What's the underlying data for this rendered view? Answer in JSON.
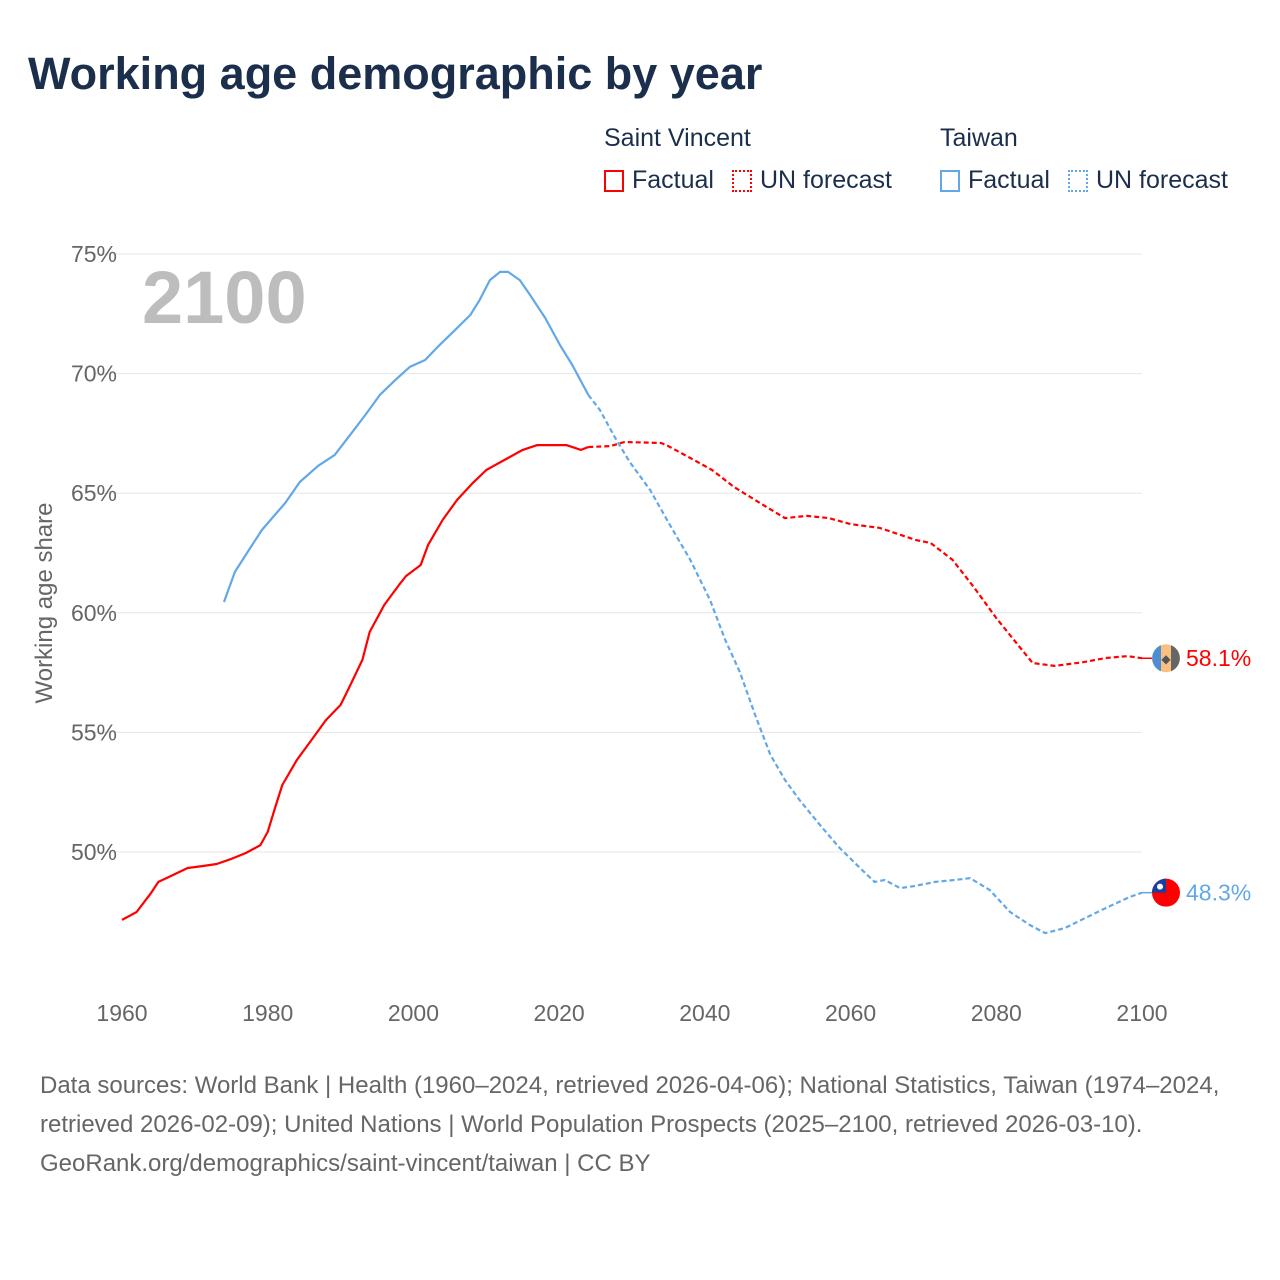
{
  "title": "Working age demographic by year",
  "legend": {
    "groups": [
      {
        "name": "Saint Vincent",
        "factual": "Factual",
        "forecast": "UN forecast",
        "color": "#ff0000"
      },
      {
        "name": "Taiwan",
        "factual": "Factual",
        "forecast": "UN forecast",
        "color": "#62a8e8"
      }
    ]
  },
  "footer": {
    "sources": "Data sources: World Bank | Health (1960–2024, retrieved 2026-04-06); National Statistics, Taiwan (1974–2024, retrieved 2026-02-09); United Nations | World Population Prospects (2025–2100, retrieved 2026-03-10).",
    "credit": "GeoRank.org/demographics/saint-vincent/taiwan | CC BY"
  },
  "chart_data": {
    "type": "line",
    "title": "Working age demographic by year",
    "xlabel": "",
    "ylabel": "Working age share",
    "year_watermark": "2100",
    "xlim": [
      1960,
      2100
    ],
    "ylim": [
      45,
      75
    ],
    "x_ticks": [
      "1960",
      "1980",
      "2000",
      "2020",
      "2040",
      "2060",
      "2080",
      "2100"
    ],
    "y_ticks": [
      "50%",
      "55%",
      "60%",
      "65%",
      "70%",
      "75%"
    ],
    "grid": true,
    "legend_position": "top-right",
    "series": [
      {
        "name": "Saint Vincent",
        "color": "#ff0000",
        "end_label": "58.1%",
        "flag": "saint-vincent-flag",
        "factual": [
          [
            1960,
            47.16
          ],
          [
            1962,
            47.49
          ],
          [
            1964,
            48.29
          ],
          [
            1965,
            48.75
          ],
          [
            1967,
            49.04
          ],
          [
            1969,
            49.33
          ],
          [
            1971,
            49.41
          ],
          [
            1973,
            49.5
          ],
          [
            1975,
            49.71
          ],
          [
            1977,
            49.96
          ],
          [
            1979,
            50.29
          ],
          [
            1980,
            50.84
          ],
          [
            1981,
            51.84
          ],
          [
            1982,
            52.8
          ],
          [
            1984,
            53.85
          ],
          [
            1986,
            54.68
          ],
          [
            1988,
            55.52
          ],
          [
            1990,
            56.15
          ],
          [
            1991,
            56.77
          ],
          [
            1993,
            58.03
          ],
          [
            1994,
            59.2
          ],
          [
            1996,
            60.33
          ],
          [
            1998,
            61.16
          ],
          [
            1999,
            61.54
          ],
          [
            2001,
            62.0
          ],
          [
            2002,
            62.83
          ],
          [
            2004,
            63.88
          ],
          [
            2006,
            64.72
          ],
          [
            2008,
            65.38
          ],
          [
            2010,
            65.97
          ],
          [
            2011,
            66.14
          ],
          [
            2015,
            66.81
          ],
          [
            2017,
            67.01
          ],
          [
            2021,
            67.01
          ],
          [
            2023,
            66.81
          ],
          [
            2024,
            66.93
          ]
        ],
        "forecast": [
          [
            2024,
            66.93
          ],
          [
            2027,
            66.97
          ],
          [
            2029,
            67.14
          ],
          [
            2034,
            67.1
          ],
          [
            2035,
            66.97
          ],
          [
            2038,
            66.47
          ],
          [
            2041,
            65.97
          ],
          [
            2044,
            65.26
          ],
          [
            2048,
            64.51
          ],
          [
            2051,
            63.96
          ],
          [
            2054,
            64.05
          ],
          [
            2057,
            63.96
          ],
          [
            2060,
            63.71
          ],
          [
            2064,
            63.55
          ],
          [
            2069,
            63.04
          ],
          [
            2071,
            62.92
          ],
          [
            2074,
            62.21
          ],
          [
            2077,
            61.04
          ],
          [
            2080,
            59.78
          ],
          [
            2083,
            58.65
          ],
          [
            2085,
            57.9
          ],
          [
            2088,
            57.78
          ],
          [
            2092,
            57.94
          ],
          [
            2095,
            58.11
          ],
          [
            2098,
            58.19
          ],
          [
            2100,
            58.1
          ]
        ]
      },
      {
        "name": "Taiwan",
        "color": "#62a8e8",
        "end_label": "48.3%",
        "flag": "taiwan-flag",
        "factual": [
          [
            1974,
            60.45
          ],
          [
            1975.5,
            61.71
          ],
          [
            1977.6,
            62.71
          ],
          [
            1979.2,
            63.46
          ],
          [
            1980.6,
            63.96
          ],
          [
            1982.4,
            64.59
          ],
          [
            1984.4,
            65.47
          ],
          [
            1986.9,
            66.14
          ],
          [
            1989.2,
            66.6
          ],
          [
            1991.3,
            67.43
          ],
          [
            1993.4,
            68.27
          ],
          [
            1995.4,
            69.11
          ],
          [
            1997.5,
            69.73
          ],
          [
            1999.5,
            70.28
          ],
          [
            2001.6,
            70.57
          ],
          [
            2003.6,
            71.2
          ],
          [
            2005.7,
            71.82
          ],
          [
            2007.8,
            72.45
          ],
          [
            2009.1,
            73.08
          ],
          [
            2010.5,
            73.91
          ],
          [
            2011.9,
            74.25
          ],
          [
            2013,
            74.25
          ],
          [
            2014.6,
            73.91
          ],
          [
            2016,
            73.29
          ],
          [
            2018.1,
            72.32
          ],
          [
            2020.1,
            71.2
          ],
          [
            2021.8,
            70.36
          ],
          [
            2024,
            69.11
          ]
        ],
        "forecast": [
          [
            2024,
            69.11
          ],
          [
            2025.6,
            68.48
          ],
          [
            2027.7,
            67.31
          ],
          [
            2029.7,
            66.3
          ],
          [
            2032.5,
            65.13
          ],
          [
            2035.2,
            63.67
          ],
          [
            2038,
            62.21
          ],
          [
            2040.7,
            60.54
          ],
          [
            2042.8,
            58.86
          ],
          [
            2044.8,
            57.53
          ],
          [
            2046.9,
            55.73
          ],
          [
            2049,
            54.06
          ],
          [
            2051,
            53.01
          ],
          [
            2053,
            52.17
          ],
          [
            2055.8,
            51.13
          ],
          [
            2058.5,
            50.17
          ],
          [
            2061.3,
            49.33
          ],
          [
            2063.3,
            48.75
          ],
          [
            2064.7,
            48.83
          ],
          [
            2066.8,
            48.49
          ],
          [
            2068.8,
            48.58
          ],
          [
            2071.6,
            48.75
          ],
          [
            2074.3,
            48.83
          ],
          [
            2076.4,
            48.91
          ],
          [
            2079.1,
            48.41
          ],
          [
            2081.9,
            47.49
          ],
          [
            2084.6,
            46.95
          ],
          [
            2086.7,
            46.61
          ],
          [
            2089.4,
            46.82
          ],
          [
            2092.2,
            47.24
          ],
          [
            2095.6,
            47.74
          ],
          [
            2098.3,
            48.12
          ],
          [
            2100,
            48.3
          ]
        ]
      }
    ]
  }
}
